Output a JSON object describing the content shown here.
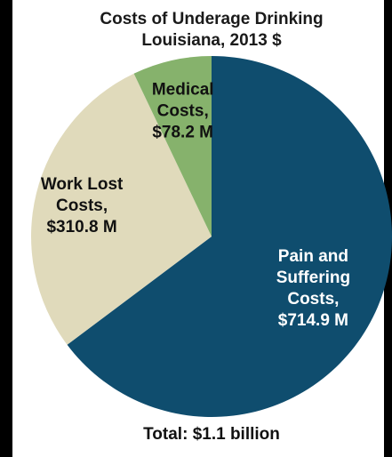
{
  "chart_data": {
    "type": "pie",
    "title": "Costs of Underage Drinking",
    "subtitle": "Louisiana, 2013 $",
    "footer": "Total: $1.1 billion",
    "slices": [
      {
        "category": "Pain and Suffering Costs",
        "value": 714.9,
        "label_lines": [
          "Pain and",
          "Suffering",
          "Costs,",
          "$714.9 M"
        ],
        "color": "#0f4d6e",
        "label_color": "#ffffff"
      },
      {
        "category": "Work Lost Costs",
        "value": 310.8,
        "label_lines": [
          "Work Lost",
          "Costs,",
          "$310.8 M"
        ],
        "color": "#e0dabb",
        "label_color": "#111111"
      },
      {
        "category": "Medical Costs",
        "value": 78.2,
        "label_lines": [
          "Medical",
          "Costs,",
          "$78.2 M"
        ],
        "color": "#86b26c",
        "label_color": "#111111"
      }
    ]
  }
}
